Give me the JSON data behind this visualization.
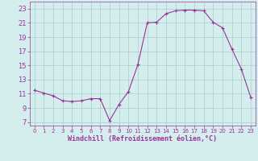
{
  "x": [
    0,
    1,
    2,
    3,
    4,
    5,
    6,
    7,
    8,
    9,
    10,
    11,
    12,
    13,
    14,
    15,
    16,
    17,
    18,
    19,
    20,
    21,
    22,
    23
  ],
  "y": [
    11.5,
    11.1,
    10.7,
    10.0,
    9.9,
    10.0,
    10.3,
    10.3,
    7.2,
    9.5,
    11.3,
    15.1,
    21.0,
    21.1,
    22.3,
    22.7,
    22.8,
    22.8,
    22.7,
    21.1,
    20.3,
    17.3,
    14.5,
    10.5
  ],
  "line_color": "#993399",
  "marker": "+",
  "marker_size": 3,
  "background_color": "#d4eeee",
  "grid_color": "#aacccc",
  "xlabel": "Windchill (Refroidissement éolien,°C)",
  "xlabel_color": "#993399",
  "ylabel_ticks": [
    7,
    9,
    11,
    13,
    15,
    17,
    19,
    21,
    23
  ],
  "xlim": [
    -0.5,
    23.5
  ],
  "ylim": [
    6.5,
    24.0
  ],
  "tick_color": "#993399",
  "axis_color": "#993399",
  "font_color": "#993399"
}
